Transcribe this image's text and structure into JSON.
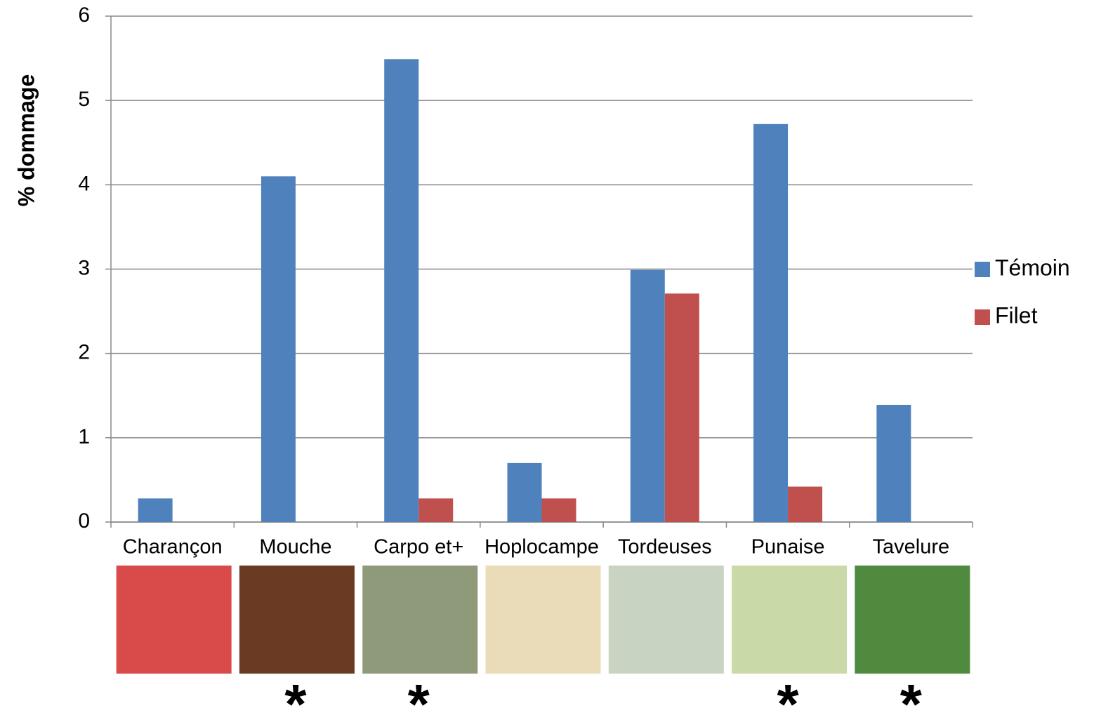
{
  "chart_data": {
    "type": "bar",
    "y_label": "% dommage",
    "categories": [
      "Charançon",
      "Mouche",
      "Carpo et+",
      "Hoplocampe",
      "Tordeuses",
      "Punaise",
      "Tavelure"
    ],
    "series": [
      {
        "name": "Témoin",
        "color": "#4f81bd",
        "values": [
          0.28,
          4.1,
          5.49,
          0.7,
          2.99,
          4.72,
          1.39
        ]
      },
      {
        "name": "Filet",
        "color": "#c0504d",
        "values": [
          0,
          0,
          0.28,
          0.28,
          2.71,
          0.42,
          0
        ]
      }
    ],
    "significance": [
      null,
      "*",
      "*",
      null,
      null,
      "*",
      "*"
    ],
    "ylim": [
      0,
      6
    ],
    "yticks": [
      0,
      1,
      2,
      3,
      4,
      5,
      6
    ],
    "grid": true,
    "legend": "right"
  }
}
